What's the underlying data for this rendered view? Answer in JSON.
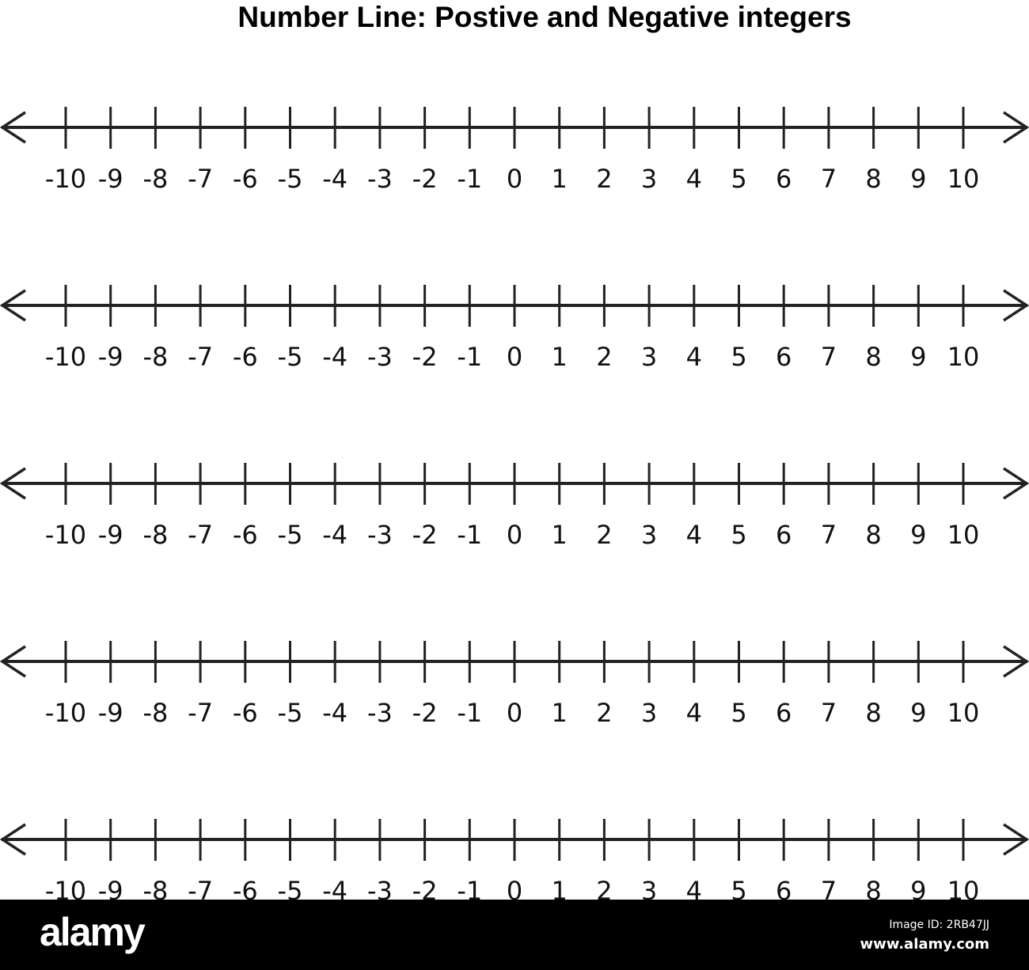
{
  "title": "Number Line: Postive and Negative integers",
  "number_lines": [
    {
      "min": -10,
      "max": 10,
      "step": 1,
      "arrows": "both"
    },
    {
      "min": -10,
      "max": 10,
      "step": 1,
      "arrows": "both"
    },
    {
      "min": -10,
      "max": 10,
      "step": 1,
      "arrows": "both"
    },
    {
      "min": -10,
      "max": 10,
      "step": 1,
      "arrows": "both"
    },
    {
      "min": -10,
      "max": 10,
      "step": 1,
      "arrows": "both"
    }
  ],
  "colors": {
    "line": "#222222",
    "footer_bg": "#000000",
    "footer_text": "#ffffff"
  },
  "footer": {
    "logo": "alamy",
    "image_id": "Image ID: 2RB47JJ",
    "site": "www.alamy.com"
  }
}
